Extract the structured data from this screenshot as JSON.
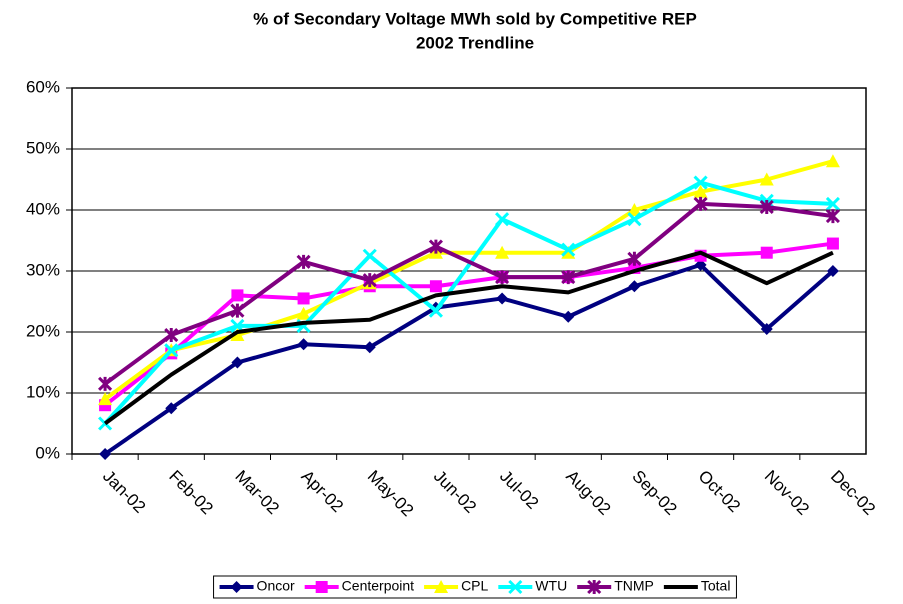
{
  "chart_data": {
    "type": "line",
    "title": "% of Secondary Voltage MWh sold by Competitive REP",
    "subtitle": "2002 Trendline",
    "categories": [
      "Jan-02",
      "Feb-02",
      "Mar-02",
      "Apr-02",
      "May-02",
      "Jun-02",
      "Jul-02",
      "Aug-02",
      "Sep-02",
      "Oct-02",
      "Nov-02",
      "Dec-02"
    ],
    "series": [
      {
        "name": "Oncor",
        "color": "#000080",
        "marker": "diamond",
        "values": [
          0,
          7.5,
          15,
          18,
          17.5,
          24,
          25.5,
          22.5,
          27.5,
          31,
          20.5,
          30
        ]
      },
      {
        "name": "Centerpoint",
        "color": "#ff00ff",
        "marker": "square",
        "values": [
          8,
          16.5,
          26,
          25.5,
          27.5,
          27.5,
          29,
          29,
          30.5,
          32.5,
          33,
          34.5
        ]
      },
      {
        "name": "CPL",
        "color": "#ffff00",
        "marker": "triangle",
        "values": [
          9,
          17,
          19.5,
          23,
          28,
          33,
          33,
          33,
          40,
          43,
          45,
          48
        ]
      },
      {
        "name": "WTU",
        "color": "#00ffff",
        "marker": "x",
        "values": [
          5,
          17,
          21,
          21,
          32.5,
          23.5,
          38.5,
          33.5,
          38.5,
          44.5,
          41.5,
          41
        ]
      },
      {
        "name": "TNMP",
        "color": "#800080",
        "marker": "star",
        "values": [
          11.5,
          19.5,
          23.5,
          31.5,
          28.5,
          34,
          29,
          29,
          32,
          41,
          40.5,
          39
        ]
      },
      {
        "name": "Total",
        "color": "#000000",
        "marker": "none",
        "values": [
          5,
          13,
          20,
          21.5,
          22,
          26,
          27.5,
          26.5,
          30,
          33,
          28,
          33
        ]
      }
    ],
    "ylim": [
      0,
      60
    ],
    "yticks": [
      {
        "value": 0,
        "label": "0%"
      },
      {
        "value": 10,
        "label": "10%"
      },
      {
        "value": 20,
        "label": "20%"
      },
      {
        "value": 30,
        "label": "30%"
      },
      {
        "value": 40,
        "label": "40%"
      },
      {
        "value": 50,
        "label": "50%"
      },
      {
        "value": 60,
        "label": "60%"
      }
    ],
    "grid": true,
    "legend": "bottom"
  }
}
